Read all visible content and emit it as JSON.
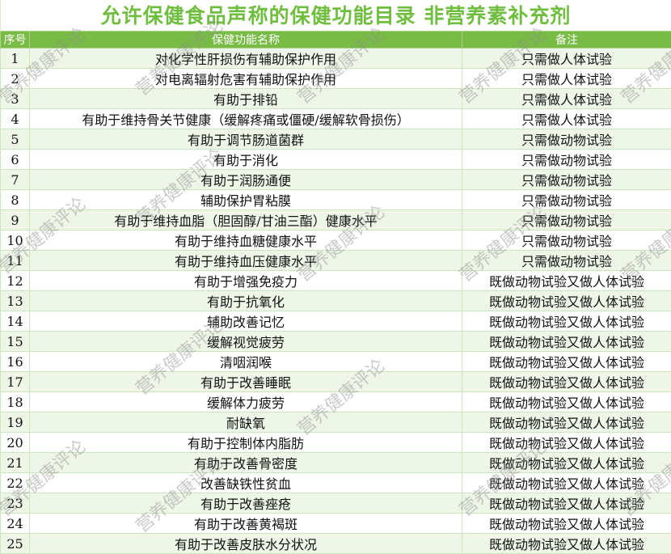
{
  "title": "允许保健食品声称的保健功能目录 非营养素补充剂",
  "headers": [
    "序号",
    "保健功能名称",
    "备注"
  ],
  "watermark": "营养健康评论",
  "colors": {
    "title": "#6fbe3f",
    "header_bg": "#78bc45",
    "row_alt": "#eef6e8"
  },
  "rows": [
    {
      "no": "1",
      "name": "对化学性肝损伤有辅助保护作用",
      "note": "只需做人体试验"
    },
    {
      "no": "2",
      "name": "对电离辐射危害有辅助保护作用",
      "note": "只需做人体试验"
    },
    {
      "no": "3",
      "name": "有助于排铅",
      "note": "只需做人体试验"
    },
    {
      "no": "4",
      "name": "有助于维持骨关节健康（缓解疼痛或僵硬/缓解软骨损伤）",
      "note": "只需做人体试验"
    },
    {
      "no": "5",
      "name": "有助于调节肠道菌群",
      "note": "只需做动物试验"
    },
    {
      "no": "6",
      "name": "有助于消化",
      "note": "只需做动物试验"
    },
    {
      "no": "7",
      "name": "有助于润肠通便",
      "note": "只需做动物试验"
    },
    {
      "no": "8",
      "name": "辅助保护胃粘膜",
      "note": "只需做动物试验"
    },
    {
      "no": "9",
      "name": "有助于维持血脂（胆固醇/甘油三酯）健康水平",
      "note": "只需做动物试验"
    },
    {
      "no": "10",
      "name": "有助于维持血糖健康水平",
      "note": "只需做动物试验"
    },
    {
      "no": "11",
      "name": "有助于维持血压健康水平",
      "note": "只需做动物试验"
    },
    {
      "no": "12",
      "name": "有助于增强免疫力",
      "note": "既做动物试验又做人体试验"
    },
    {
      "no": "13",
      "name": "有助于抗氧化",
      "note": "既做动物试验又做人体试验"
    },
    {
      "no": "14",
      "name": "辅助改善记忆",
      "note": "既做动物试验又做人体试验"
    },
    {
      "no": "15",
      "name": "缓解视觉疲劳",
      "note": "既做动物试验又做人体试验"
    },
    {
      "no": "16",
      "name": "清咽润喉",
      "note": "既做动物试验又做人体试验"
    },
    {
      "no": "17",
      "name": "有助于改善睡眠",
      "note": "既做动物试验又做人体试验"
    },
    {
      "no": "18",
      "name": "缓解体力疲劳",
      "note": "既做动物试验又做人体试验"
    },
    {
      "no": "19",
      "name": "耐缺氧",
      "note": "既做动物试验又做人体试验"
    },
    {
      "no": "20",
      "name": "有助于控制体内脂肪",
      "note": "既做动物试验又做人体试验"
    },
    {
      "no": "21",
      "name": "有助于改善骨密度",
      "note": "既做动物试验又做人体试验"
    },
    {
      "no": "22",
      "name": "改善缺铁性贫血",
      "note": "既做动物试验又做人体试验"
    },
    {
      "no": "23",
      "name": "有助于改善痤疮",
      "note": "既做动物试验又做人体试验"
    },
    {
      "no": "24",
      "name": "有助于改善黄褐斑",
      "note": "既做动物试验又做人体试验"
    },
    {
      "no": "25",
      "name": "有助于改善皮肤水分状况",
      "note": "既做动物试验又做人体试验"
    }
  ]
}
